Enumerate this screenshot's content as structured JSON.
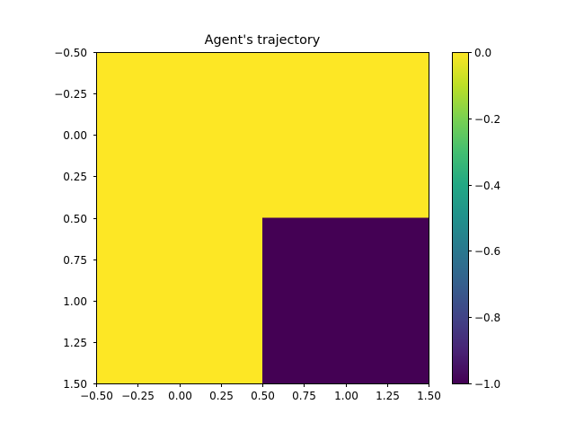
{
  "chart_data": {
    "type": "heatmap",
    "title": "Agent's trajectory",
    "xlabel": "",
    "ylabel": "",
    "xlim": [
      -0.5,
      1.5
    ],
    "ylim": [
      1.5,
      -0.5
    ],
    "x_ticks": [
      -0.5,
      -0.25,
      0.0,
      0.25,
      0.5,
      0.75,
      1.0,
      1.25,
      1.5
    ],
    "x_tick_labels": [
      "−0.50",
      "−0.25",
      "0.00",
      "0.25",
      "0.50",
      "0.75",
      "1.00",
      "1.25",
      "1.50"
    ],
    "y_ticks": [
      -0.5,
      -0.25,
      0.0,
      0.25,
      0.5,
      0.75,
      1.0,
      1.25,
      1.5
    ],
    "y_tick_labels": [
      "−0.50",
      "−0.25",
      "0.00",
      "0.25",
      "0.50",
      "0.75",
      "1.00",
      "1.25",
      "1.50"
    ],
    "rows": [
      0,
      1
    ],
    "cols": [
      0,
      1
    ],
    "values": [
      [
        0,
        0
      ],
      [
        0,
        -1
      ]
    ],
    "colormap": "viridis",
    "color_range": [
      -1.0,
      0.0
    ],
    "colorbar_ticks": [
      0.0,
      -0.2,
      -0.4,
      -0.6,
      -0.8,
      -1.0
    ],
    "colorbar_tick_labels": [
      "0.0",
      "−0.2",
      "−0.4",
      "−0.6",
      "−0.8",
      "−1.0"
    ],
    "grid": false
  },
  "colors": {
    "max": "#fde725",
    "min": "#440154"
  }
}
